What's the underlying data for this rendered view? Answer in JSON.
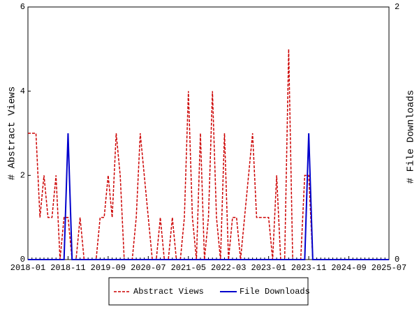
{
  "chart_data": {
    "type": "line",
    "x": [
      "2018-01",
      null,
      null,
      null,
      null,
      null,
      null,
      null,
      null,
      null,
      "2018-11",
      null,
      null,
      null,
      null,
      null,
      null,
      null,
      null,
      null,
      "2019-09",
      null,
      null,
      null,
      null,
      null,
      null,
      null,
      null,
      null,
      "2020-07",
      null,
      null,
      null,
      null,
      null,
      null,
      null,
      null,
      null,
      "2021-05",
      null,
      null,
      null,
      null,
      null,
      null,
      null,
      null,
      null,
      "2022-03",
      null,
      null,
      null,
      null,
      null,
      null,
      null,
      null,
      null,
      "2023-01",
      null,
      null,
      null,
      null,
      null,
      null,
      null,
      null,
      null,
      "2023-11",
      null,
      null,
      null,
      null,
      null,
      null,
      null,
      null,
      null,
      "2024-09",
      null,
      null,
      null,
      null,
      null,
      null,
      null,
      null,
      null,
      "2025-07"
    ],
    "ylabel": "# Abstract Views",
    "y2label": "# File Downloads",
    "ylim": [
      0,
      6
    ],
    "yticks": [
      0,
      2,
      4,
      6
    ],
    "y2lim": [
      0,
      2
    ],
    "y2ticks": [
      0,
      2
    ],
    "grid": false,
    "legend": "bottom",
    "series": [
      {
        "name": "Abstract Views",
        "color": "#cc0000",
        "dashed": true,
        "values": [
          3,
          3,
          3,
          1,
          2,
          1,
          1,
          2,
          0,
          1,
          1,
          0,
          0,
          1,
          0,
          0,
          0,
          0,
          1,
          1,
          2,
          1,
          3,
          2,
          0,
          0,
          0,
          1,
          3,
          2,
          1,
          0,
          0,
          1,
          0,
          0,
          1,
          0,
          0,
          1,
          4,
          1,
          0,
          3,
          0,
          1,
          4,
          1,
          0,
          3,
          0,
          1,
          1,
          0,
          1,
          2,
          3,
          1,
          1,
          1,
          1,
          0,
          2,
          0,
          0,
          5,
          0,
          0,
          0,
          2,
          2,
          0,
          0,
          0,
          0,
          0,
          0,
          0,
          0,
          0,
          0,
          0,
          0,
          0,
          0,
          0,
          0,
          0,
          0,
          0,
          0
        ]
      },
      {
        "name": "File Downloads",
        "color": "#0000cc",
        "axis": "y2",
        "dashed": false,
        "values": [
          0,
          0,
          0,
          0,
          0,
          0,
          0,
          0,
          0,
          0,
          1,
          0,
          0,
          0,
          0,
          0,
          0,
          0,
          0,
          0,
          0,
          0,
          0,
          0,
          0,
          0,
          0,
          0,
          0,
          0,
          0,
          0,
          0,
          0,
          0,
          0,
          0,
          0,
          0,
          0,
          0,
          0,
          0,
          0,
          0,
          0,
          0,
          0,
          0,
          0,
          0,
          0,
          0,
          0,
          0,
          0,
          0,
          0,
          0,
          0,
          0,
          0,
          0,
          0,
          0,
          0,
          0,
          0,
          0,
          0,
          1,
          0,
          0,
          0,
          0,
          0,
          0,
          0,
          0,
          0,
          0,
          0,
          0,
          0,
          0,
          0,
          0,
          0,
          0,
          0,
          0
        ]
      }
    ]
  }
}
